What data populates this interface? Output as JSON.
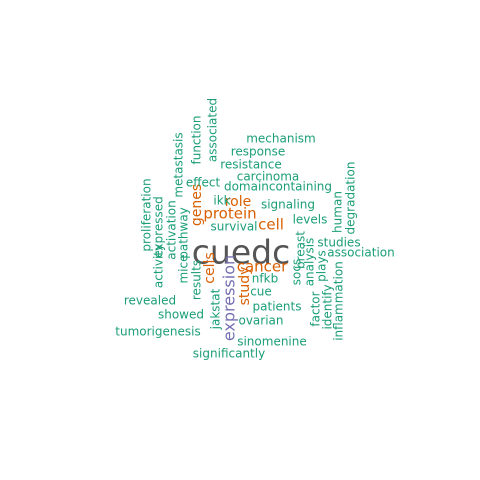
{
  "colors": {
    "teal": "#1b9e77",
    "orange": "#d95f02",
    "purple": "#7570b3",
    "gray": "#555555"
  },
  "words": [
    {
      "text": "cuedc",
      "color": "gray"
    },
    {
      "text": "expression",
      "color": "purple"
    },
    {
      "text": "cancer",
      "color": "orange"
    },
    {
      "text": "protein",
      "color": "orange"
    },
    {
      "text": "cell",
      "color": "orange"
    },
    {
      "text": "genes",
      "color": "orange"
    },
    {
      "text": "role",
      "color": "orange"
    },
    {
      "text": "cells",
      "color": "orange"
    },
    {
      "text": "study",
      "color": "orange"
    },
    {
      "text": "mechanism",
      "color": "teal"
    },
    {
      "text": "associated",
      "color": "teal"
    },
    {
      "text": "response",
      "color": "teal"
    },
    {
      "text": "function",
      "color": "teal"
    },
    {
      "text": "resistance",
      "color": "teal"
    },
    {
      "text": "metastasis",
      "color": "teal"
    },
    {
      "text": "carcinoma",
      "color": "teal"
    },
    {
      "text": "effect",
      "color": "teal"
    },
    {
      "text": "domaincontaining",
      "color": "teal"
    },
    {
      "text": "degradation",
      "color": "teal"
    },
    {
      "text": "ikk",
      "color": "teal"
    },
    {
      "text": "signaling",
      "color": "teal"
    },
    {
      "text": "proliferation",
      "color": "teal"
    },
    {
      "text": "expressed",
      "color": "teal"
    },
    {
      "text": "human",
      "color": "teal"
    },
    {
      "text": "levels",
      "color": "teal"
    },
    {
      "text": "survival",
      "color": "teal"
    },
    {
      "text": "pathway",
      "color": "teal"
    },
    {
      "text": "activation",
      "color": "teal"
    },
    {
      "text": "studies",
      "color": "teal"
    },
    {
      "text": "breast",
      "color": "teal"
    },
    {
      "text": "activity",
      "color": "teal"
    },
    {
      "text": "association",
      "color": "teal"
    },
    {
      "text": "analysis",
      "color": "teal"
    },
    {
      "text": "mice",
      "color": "teal"
    },
    {
      "text": "socs",
      "color": "teal"
    },
    {
      "text": "plays",
      "color": "teal"
    },
    {
      "text": "nfkb",
      "color": "teal"
    },
    {
      "text": "results",
      "color": "teal"
    },
    {
      "text": "cue",
      "color": "teal"
    },
    {
      "text": "revealed",
      "color": "teal"
    },
    {
      "text": "factor",
      "color": "teal"
    },
    {
      "text": "identify",
      "color": "teal"
    },
    {
      "text": "inflammation",
      "color": "teal"
    },
    {
      "text": "patients",
      "color": "teal"
    },
    {
      "text": "showed",
      "color": "teal"
    },
    {
      "text": "jakstat",
      "color": "teal"
    },
    {
      "text": "ovarian",
      "color": "teal"
    },
    {
      "text": "tumorigenesis",
      "color": "teal"
    },
    {
      "text": "sinomenine",
      "color": "teal"
    },
    {
      "text": "significantly",
      "color": "teal"
    }
  ]
}
